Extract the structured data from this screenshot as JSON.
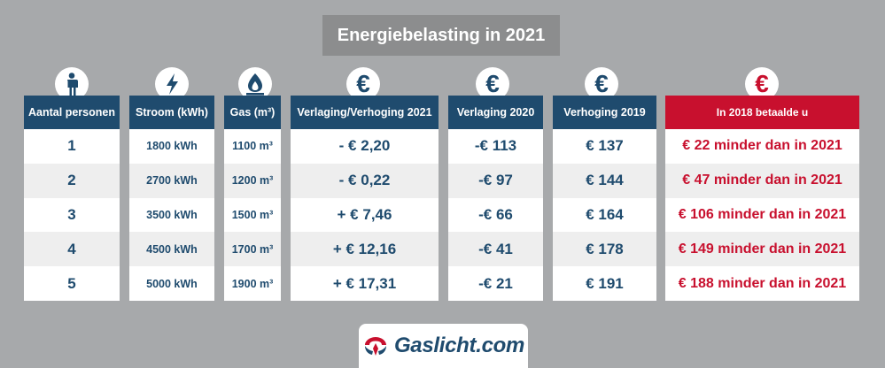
{
  "title": "Energiebelasting in 2021",
  "columns": [
    {
      "key": "persons",
      "header": "Aantal personen",
      "icon": "person-icon"
    },
    {
      "key": "power",
      "header": "Stroom (kWh)",
      "icon": "lightning-icon"
    },
    {
      "key": "gas",
      "header": "Gas (m³)",
      "icon": "flame-icon"
    },
    {
      "key": "change2021",
      "header": "Verlaging/Verhoging 2021",
      "icon": "euro-icon"
    },
    {
      "key": "reduction2020",
      "header": "Verlaging 2020",
      "icon": "euro-icon"
    },
    {
      "key": "increase2019",
      "header": "Verhoging 2019",
      "icon": "euro-icon"
    },
    {
      "key": "paid2018",
      "header": "In 2018 betaalde u",
      "icon": "euro-icon"
    }
  ],
  "euro_symbol": "€",
  "rows": [
    {
      "persons": "1",
      "power": "1800 kWh",
      "gas": "1100 m³",
      "change2021": "- € 2,20",
      "reduction2020": "-€ 113",
      "increase2019": "€ 137",
      "paid2018": "€ 22 minder dan in 2021"
    },
    {
      "persons": "2",
      "power": "2700 kWh",
      "gas": "1200 m³",
      "change2021": "- € 0,22",
      "reduction2020": "-€ 97",
      "increase2019": "€ 144",
      "paid2018": "€ 47 minder dan in 2021"
    },
    {
      "persons": "3",
      "power": "3500 kWh",
      "gas": "1500 m³",
      "change2021": "+ € 7,46",
      "reduction2020": "-€ 66",
      "increase2019": "€ 164",
      "paid2018": "€ 106 minder dan in 2021"
    },
    {
      "persons": "4",
      "power": "4500 kWh",
      "gas": "1700 m³",
      "change2021": "+ € 12,16",
      "reduction2020": "-€ 41",
      "increase2019": "€ 178",
      "paid2018": "€ 149 minder dan in 2021"
    },
    {
      "persons": "5",
      "power": "5000 kWh",
      "gas": "1900 m³",
      "change2021": "+ € 17,31",
      "reduction2020": "-€ 21",
      "increase2019": "€ 191",
      "paid2018": "€ 188 minder dan in 2021"
    }
  ],
  "logo": {
    "text": "Gaslicht.com"
  },
  "colors": {
    "navy": "#1f4b6e",
    "red": "#c8102e",
    "gray_bg": "#a7a9ab",
    "title_bg": "#8c8d8e",
    "alt_row": "#eeeeee"
  }
}
